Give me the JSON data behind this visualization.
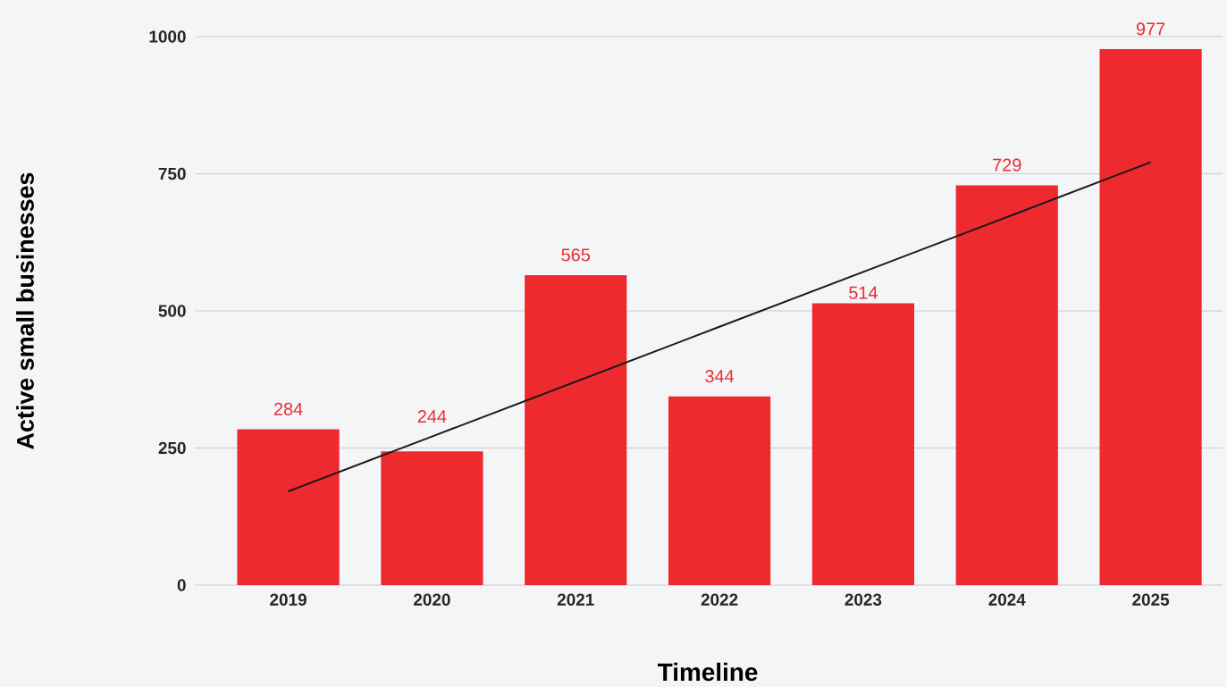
{
  "chart_data": {
    "type": "bar",
    "xlabel": "Timeline",
    "ylabel": "Active small businesses",
    "categories": [
      "2019",
      "2020",
      "2021",
      "2022",
      "2023",
      "2024",
      "2025"
    ],
    "series": [
      {
        "color": "#ee2a2e",
        "values": [
          284,
          244,
          565,
          344,
          514,
          729,
          977
        ],
        "value_labels": [
          "284",
          "244",
          "565",
          "344",
          "514",
          "729",
          "977"
        ]
      },
      {
        "type": "line",
        "color": "#1a1a1a",
        "values": [
          171,
          271,
          371,
          471,
          571,
          671,
          771
        ]
      }
    ],
    "ylim": [
      0,
      1000
    ],
    "yticks": [
      0,
      250,
      500,
      750,
      1000
    ],
    "grid": "y"
  }
}
